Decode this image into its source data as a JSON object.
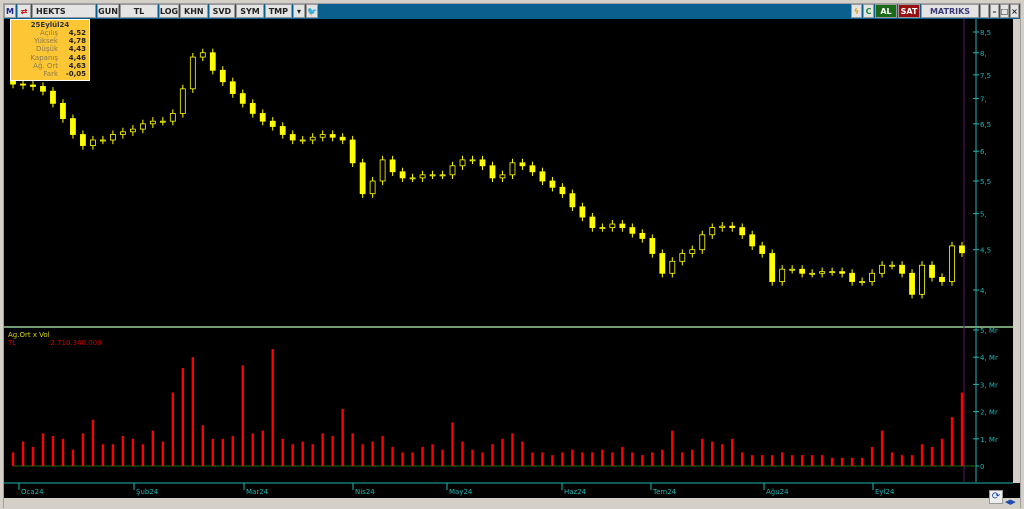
{
  "toolbar": {
    "logo": "M",
    "symbol": "HEKTS",
    "buttons": [
      "GUN",
      "TL",
      "LOG",
      "KHN",
      "SVD",
      "SYM",
      "TMP"
    ],
    "buy": "AL",
    "sell": "SAT",
    "brand": "MATRIKS"
  },
  "info": {
    "date": "25Eylül24",
    "rows": [
      {
        "label": "Açılış",
        "value": "4,52"
      },
      {
        "label": "Yüksek",
        "value": "4,78"
      },
      {
        "label": "Düşük",
        "value": "4,43"
      },
      {
        "label": "Kapanış",
        "value": "4,46"
      },
      {
        "label": "Ağ. Ort",
        "value": "4,63"
      },
      {
        "label": "Fark",
        "value": "-0,05"
      }
    ]
  },
  "volume_panel": {
    "title": "Ag.Ort x Vol",
    "unit": "TL",
    "value": ":2.710.340.000"
  },
  "colors": {
    "candle": "#ffff00",
    "volume": "#ff0000",
    "axis": "#1fb5b5",
    "info_bg": "#fcc634"
  },
  "chart_data": [
    {
      "type": "candlestick",
      "scale": "log",
      "ylim": [
        3.8,
        8.7
      ],
      "yticks": [
        "8,5",
        "8,",
        "7,5",
        "7,",
        "6,5",
        "6,",
        "5,5",
        "5,",
        "4,5",
        "4,"
      ],
      "ytick_values": [
        8.5,
        8,
        7.5,
        7,
        6.5,
        6,
        5.5,
        5,
        4.5,
        4
      ],
      "xticks": [
        "Oca24",
        "Şub24",
        "Mar24",
        "Nis24",
        "May24",
        "Haz24",
        "Tem24",
        "Ağu24",
        "Eyl24"
      ],
      "close": [
        7.3,
        7.28,
        7.25,
        7.15,
        6.9,
        6.6,
        6.3,
        6.1,
        6.2,
        6.2,
        6.3,
        6.35,
        6.4,
        6.5,
        6.55,
        6.55,
        6.7,
        7.2,
        7.9,
        8.0,
        7.6,
        7.35,
        7.1,
        6.9,
        6.7,
        6.55,
        6.45,
        6.3,
        6.2,
        6.2,
        6.25,
        6.3,
        6.25,
        6.2,
        5.8,
        5.3,
        5.5,
        5.85,
        5.65,
        5.55,
        5.55,
        5.6,
        5.6,
        5.6,
        5.75,
        5.85,
        5.85,
        5.75,
        5.55,
        5.6,
        5.8,
        5.75,
        5.65,
        5.5,
        5.4,
        5.3,
        5.1,
        4.95,
        4.8,
        4.8,
        4.85,
        4.8,
        4.72,
        4.65,
        4.45,
        4.2,
        4.35,
        4.45,
        4.5,
        4.7,
        4.8,
        4.82,
        4.8,
        4.7,
        4.55,
        4.45,
        4.1,
        4.25,
        4.25,
        4.2,
        4.2,
        4.22,
        4.22,
        4.2,
        4.1,
        4.1,
        4.2,
        4.3,
        4.3,
        4.2,
        3.95,
        4.3,
        4.15,
        4.1,
        4.55,
        4.46
      ]
    },
    {
      "type": "bar",
      "ylim": [
        0,
        5
      ],
      "yticks": [
        "5, Mr",
        "4, Mr",
        "3, Mr",
        "2, Mr",
        "1, Mr",
        "0"
      ],
      "ytick_values": [
        5,
        4,
        3,
        2,
        1,
        0
      ],
      "values": [
        0.5,
        0.9,
        0.7,
        1.2,
        1.1,
        1.0,
        0.6,
        1.2,
        1.7,
        0.8,
        0.8,
        1.1,
        1.0,
        0.8,
        1.3,
        0.9,
        2.7,
        3.6,
        4.0,
        1.5,
        1.0,
        1.0,
        1.1,
        3.7,
        1.2,
        1.3,
        4.3,
        1.0,
        0.8,
        0.9,
        0.8,
        1.2,
        1.1,
        2.1,
        1.2,
        0.8,
        0.9,
        1.1,
        0.7,
        0.5,
        0.5,
        0.7,
        0.8,
        0.6,
        1.6,
        0.9,
        0.6,
        0.5,
        0.8,
        1.0,
        1.2,
        0.9,
        0.5,
        0.5,
        0.4,
        0.5,
        0.6,
        0.5,
        0.5,
        0.6,
        0.5,
        0.7,
        0.5,
        0.4,
        0.5,
        0.6,
        1.3,
        0.5,
        0.6,
        1.0,
        0.9,
        0.8,
        1.0,
        0.5,
        0.4,
        0.4,
        0.4,
        0.5,
        0.4,
        0.4,
        0.4,
        0.4,
        0.3,
        0.3,
        0.3,
        0.3,
        0.7,
        1.3,
        0.5,
        0.4,
        0.4,
        0.8,
        0.7,
        1.0,
        1.8,
        2.7
      ]
    }
  ]
}
